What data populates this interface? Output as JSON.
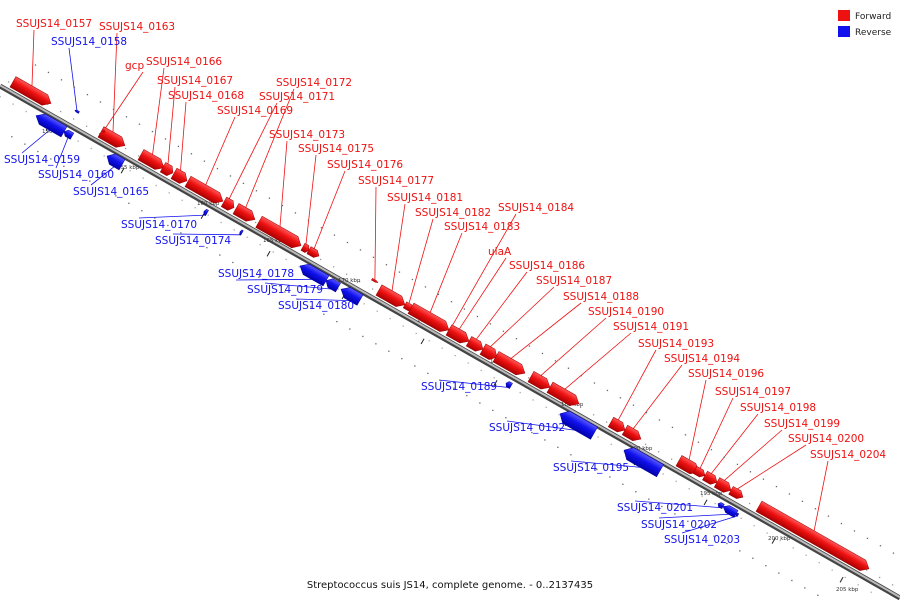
{
  "title": "Streptococcus suis JS14, complete genome. - 0..2137435",
  "colors": {
    "forward": "#ee1111",
    "reverse": "#1111ee",
    "backbone": "#888888"
  },
  "legend": {
    "forward_label": "Forward",
    "reverse_label": "Reverse"
  },
  "ticks": [
    "150 kbp",
    "155 kbp",
    "160 kbp",
    "165 kbp",
    "170 kbp",
    "175 kbp",
    "180 kbp",
    "185 kbp",
    "190 kbp",
    "195 kbp",
    "200 kbp",
    "205 kbp"
  ],
  "genes": [
    {
      "name": "SSUJS14_0157",
      "strand": "forward"
    },
    {
      "name": "SSUJS14_0158",
      "strand": "reverse"
    },
    {
      "name": "SSUJS14_0159",
      "strand": "reverse"
    },
    {
      "name": "SSUJS14_0160",
      "strand": "reverse"
    },
    {
      "name": "SSUJS14_0163",
      "strand": "forward"
    },
    {
      "name": "gcp",
      "strand": "forward"
    },
    {
      "name": "SSUJS14_0165",
      "strand": "reverse"
    },
    {
      "name": "SSUJS14_0166",
      "strand": "forward"
    },
    {
      "name": "SSUJS14_0167",
      "strand": "forward"
    },
    {
      "name": "SSUJS14_0168",
      "strand": "forward"
    },
    {
      "name": "SSUJS14_0169",
      "strand": "forward"
    },
    {
      "name": "SSUJS14_0170",
      "strand": "reverse"
    },
    {
      "name": "SSUJS14_0171",
      "strand": "forward"
    },
    {
      "name": "SSUJS14_0172",
      "strand": "forward"
    },
    {
      "name": "SSUJS14_0173",
      "strand": "forward"
    },
    {
      "name": "SSUJS14_0174",
      "strand": "reverse"
    },
    {
      "name": "SSUJS14_0175",
      "strand": "forward"
    },
    {
      "name": "SSUJS14_0176",
      "strand": "forward"
    },
    {
      "name": "SSUJS14_0177",
      "strand": "forward"
    },
    {
      "name": "SSUJS14_0178",
      "strand": "reverse"
    },
    {
      "name": "SSUJS14_0179",
      "strand": "reverse"
    },
    {
      "name": "SSUJS14_0180",
      "strand": "reverse"
    },
    {
      "name": "SSUJS14_0181",
      "strand": "forward"
    },
    {
      "name": "SSUJS14_0182",
      "strand": "forward"
    },
    {
      "name": "SSUJS14_0183",
      "strand": "forward"
    },
    {
      "name": "SSUJS14_0184",
      "strand": "forward"
    },
    {
      "name": "ulaA",
      "strand": "forward"
    },
    {
      "name": "SSUJS14_0186",
      "strand": "forward"
    },
    {
      "name": "SSUJS14_0187",
      "strand": "forward"
    },
    {
      "name": "SSUJS14_0188",
      "strand": "forward"
    },
    {
      "name": "SSUJS14_0189",
      "strand": "reverse"
    },
    {
      "name": "SSUJS14_0190",
      "strand": "forward"
    },
    {
      "name": "SSUJS14_0191",
      "strand": "forward"
    },
    {
      "name": "SSUJS14_0192",
      "strand": "reverse"
    },
    {
      "name": "SSUJS14_0193",
      "strand": "forward"
    },
    {
      "name": "SSUJS14_0194",
      "strand": "forward"
    },
    {
      "name": "SSUJS14_0195",
      "strand": "reverse"
    },
    {
      "name": "SSUJS14_0196",
      "strand": "forward"
    },
    {
      "name": "SSUJS14_0197",
      "strand": "forward"
    },
    {
      "name": "SSUJS14_0198",
      "strand": "forward"
    },
    {
      "name": "SSUJS14_0199",
      "strand": "forward"
    },
    {
      "name": "SSUJS14_0200",
      "strand": "forward"
    },
    {
      "name": "SSUJS14_0201",
      "strand": "reverse"
    },
    {
      "name": "SSUJS14_0202",
      "strand": "reverse"
    },
    {
      "name": "SSUJS14_0203",
      "strand": "reverse"
    },
    {
      "name": "SSUJS14_0204",
      "strand": "forward"
    }
  ]
}
